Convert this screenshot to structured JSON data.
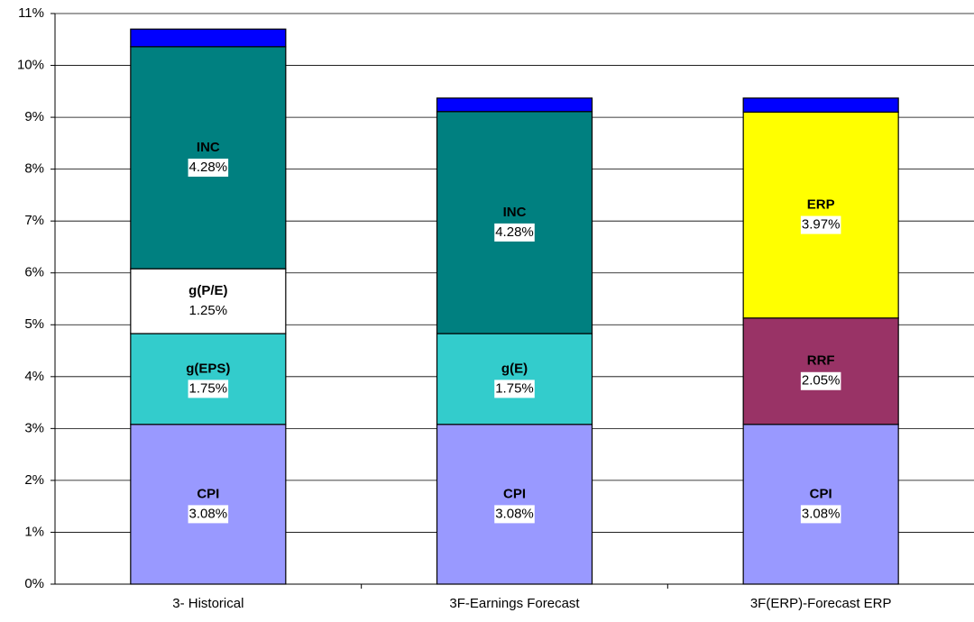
{
  "chart_data": {
    "type": "stacked_bar",
    "categories": [
      "3- Historical",
      "3F-Earnings Forecast",
      "3F(ERP)-Forecast ERP"
    ],
    "series": [
      {
        "name": "CPI",
        "color": "#9999ff",
        "label_color": "#ffffff",
        "values": [
          3.08,
          3.08,
          3.08
        ],
        "value_labels": [
          "3.08%",
          "3.08%",
          "3.08%"
        ]
      },
      {
        "name": "g(EPS)",
        "color": "#33cccc",
        "label_color": "#ffffff",
        "values": [
          1.75,
          null,
          null
        ],
        "value_labels": [
          "1.75%",
          null,
          null
        ]
      },
      {
        "name": "g(E)",
        "color": "#33cccc",
        "label_color": "#ffffff",
        "values": [
          null,
          1.75,
          null
        ],
        "value_labels": [
          null,
          "1.75%",
          null
        ]
      },
      {
        "name": "RRF",
        "color": "#993366",
        "label_color": "#ffffff",
        "values": [
          null,
          null,
          2.05
        ],
        "value_labels": [
          null,
          null,
          "2.05%"
        ]
      },
      {
        "name": "g(P/E)",
        "color": "#ffffff",
        "label_color": "#808080",
        "values": [
          1.25,
          null,
          null
        ],
        "value_labels": [
          "1.25%",
          null,
          null
        ]
      },
      {
        "name": "INC",
        "color": "#008080",
        "label_color": "#ffffff",
        "values": [
          4.28,
          4.28,
          null
        ],
        "value_labels": [
          "4.28%",
          "4.28%",
          null
        ]
      },
      {
        "name": "ERP",
        "color": "#ffff00",
        "label_color": "#808080",
        "values": [
          null,
          null,
          3.97
        ],
        "value_labels": [
          null,
          null,
          "3.97%"
        ]
      },
      {
        "color": "#0000ff",
        "values": [
          0.34,
          0.26,
          0.27
        ]
      }
    ],
    "ylim": [
      0,
      11
    ],
    "yticks": [
      {
        "value": 0,
        "label": "0%"
      },
      {
        "value": 1,
        "label": "1%"
      },
      {
        "value": 2,
        "label": "2%"
      },
      {
        "value": 3,
        "label": "3%"
      },
      {
        "value": 4,
        "label": "4%"
      },
      {
        "value": 5,
        "label": "5%"
      },
      {
        "value": 6,
        "label": "6%"
      },
      {
        "value": 7,
        "label": "7%"
      },
      {
        "value": 8,
        "label": "8%"
      },
      {
        "value": 9,
        "label": "9%"
      },
      {
        "value": 10,
        "label": "10%"
      },
      {
        "value": 11,
        "label": "11%"
      }
    ],
    "grid": true
  }
}
